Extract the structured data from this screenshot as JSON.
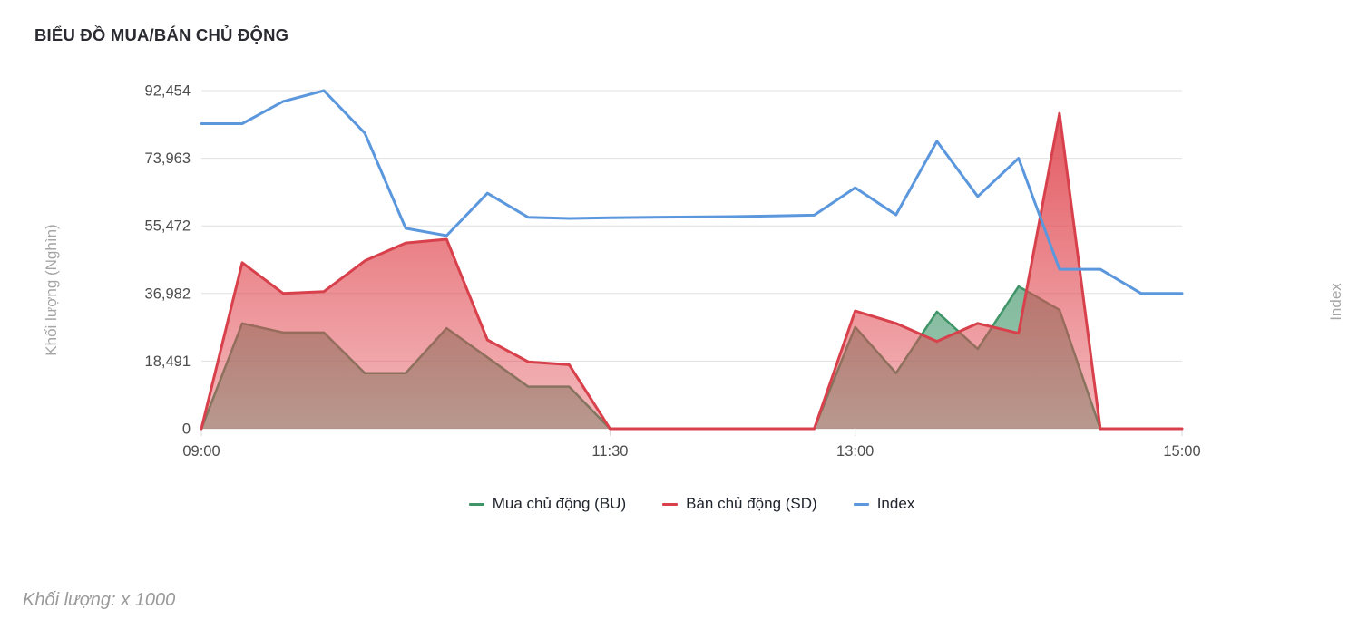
{
  "title": "BIỂU ĐỒ MUA/BÁN CHỦ ĐỘNG",
  "footer_note": "Khối lượng: x 1000",
  "theme": {
    "grid_color": "#e0e0e0",
    "tick_color": "#d8d8d8",
    "tick_label_color": "#4d4d4d",
    "axis_title_color": "#a6a6a6",
    "title_color": "#2a2a31",
    "legend_text_color": "#20242c",
    "background": "#ffffff"
  },
  "chart_data": {
    "type": "area",
    "title": "BIỂU ĐỒ MUA/BÁN CHỦ ĐỘNG",
    "xlabel": "",
    "ylabel": "Khối lượng (Nghìn)",
    "ylabel_right": "Index",
    "ylim": [
      0,
      92454
    ],
    "y_ticks": [
      0,
      18491,
      36982,
      55472,
      73963,
      92454
    ],
    "y_tick_labels": [
      "0",
      "18,491",
      "36,982",
      "55,472",
      "73,963",
      "92,454"
    ],
    "grid": true,
    "legend_position": "bottom",
    "x_interval_minutes": 15,
    "x": [
      "09:00",
      "09:15",
      "09:30",
      "09:45",
      "10:00",
      "10:15",
      "10:30",
      "10:45",
      "11:00",
      "11:15",
      "11:30",
      "11:45",
      "12:00",
      "12:15",
      "12:30",
      "12:45",
      "13:00",
      "13:15",
      "13:30",
      "13:45",
      "14:00",
      "14:15",
      "14:30",
      "14:45",
      "15:00"
    ],
    "x_tick_indices": [
      0,
      10,
      16,
      24
    ],
    "x_tick_labels": [
      "09:00",
      "11:30",
      "13:00",
      "15:00"
    ],
    "series": [
      {
        "name": "Mua chủ động (BU)",
        "type": "area",
        "color": "#3f9468",
        "fill_opacity_top": 0.85,
        "fill_opacity_bottom": 0.5,
        "values": [
          0,
          28800,
          26300,
          26300,
          15200,
          15200,
          27500,
          19500,
          11500,
          11500,
          0,
          0,
          0,
          0,
          0,
          0,
          27800,
          15200,
          32000,
          21800,
          38900,
          32500,
          0,
          0,
          0
        ]
      },
      {
        "name": "Bán chủ động (SD)",
        "type": "area",
        "color": "#d8414b",
        "fill_base": "#e04a52",
        "fill_opacity_top": 0.95,
        "fill_opacity_bottom": 0.38,
        "values": [
          0,
          45400,
          37000,
          37500,
          45900,
          50800,
          51800,
          24300,
          18300,
          17500,
          0,
          0,
          0,
          0,
          0,
          0,
          32200,
          28800,
          23900,
          28800,
          26100,
          86200,
          0,
          0,
          0
        ]
      },
      {
        "name": "Index",
        "type": "line",
        "color": "#5b97dd",
        "values": [
          83400,
          83400,
          89500,
          92454,
          80800,
          54800,
          52800,
          64400,
          57800,
          57500,
          57700,
          57800,
          57900,
          58000,
          58200,
          58400,
          65900,
          58500,
          78600,
          63500,
          73963,
          43600,
          43600,
          36982,
          36982
        ]
      }
    ]
  }
}
